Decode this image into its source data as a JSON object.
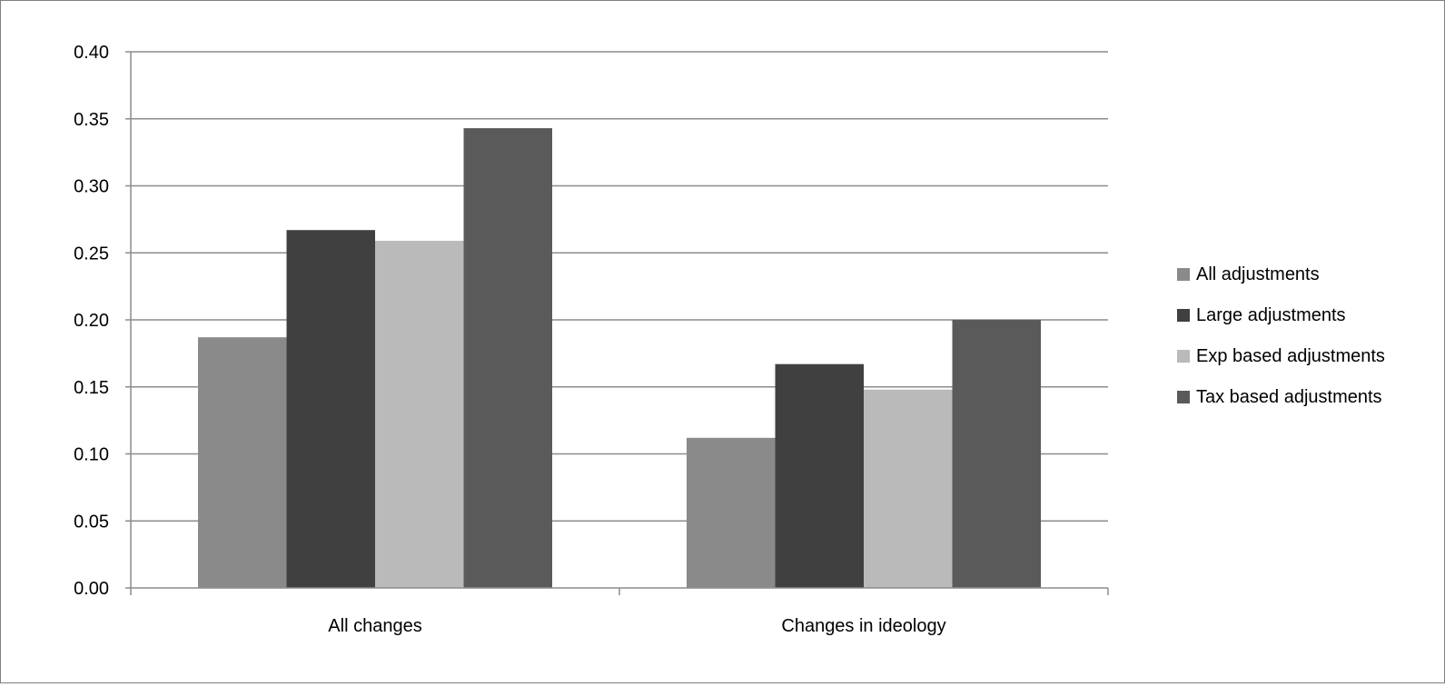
{
  "chart_data": {
    "type": "bar",
    "title": "",
    "xlabel": "",
    "ylabel": "",
    "categories": [
      "All changes",
      "Changes in ideology"
    ],
    "series": [
      {
        "name": "All adjustments",
        "values": [
          0.187,
          0.112
        ],
        "color": "#8a8a8a"
      },
      {
        "name": "Large adjustments",
        "values": [
          0.267,
          0.167
        ],
        "color": "#404040"
      },
      {
        "name": "Exp based adjustments",
        "values": [
          0.259,
          0.148
        ],
        "color": "#bababa"
      },
      {
        "name": "Tax based adjustments",
        "values": [
          0.343,
          0.2
        ],
        "color": "#5a5a5a"
      }
    ],
    "ylim": [
      0,
      0.4
    ],
    "yticks": [
      "0.00",
      "0.05",
      "0.10",
      "0.15",
      "0.20",
      "0.25",
      "0.30",
      "0.35",
      "0.40"
    ],
    "grid": true,
    "legend_position": "right"
  }
}
